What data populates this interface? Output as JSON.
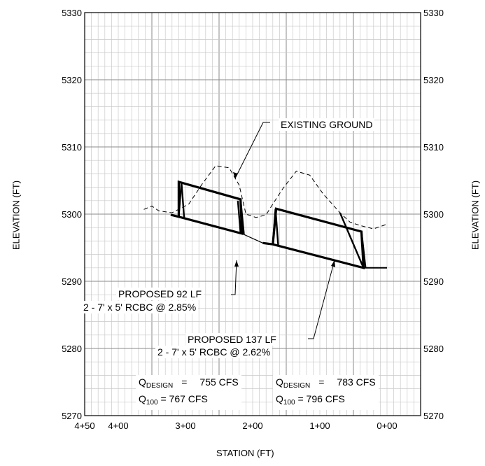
{
  "axes": {
    "left_title": "ELEVATION (FT)",
    "right_title": "ELEVATION (FT)",
    "x_title": "STATION (FT)",
    "y_ticks": [
      "5330",
      "5320",
      "5310",
      "5300",
      "5290",
      "5280",
      "5270"
    ],
    "x_ticks": [
      "4+50",
      "4+00",
      "3+00",
      "2+00",
      "1+00",
      "0+00"
    ]
  },
  "labels": {
    "existing_ground": "EXISTING GROUND",
    "culvert_a_line1": "PROPOSED 92 LF",
    "culvert_a_line2": "2 - 7' x 5' RCBC @ 2.85%",
    "culvert_b_line1": "PROPOSED 137 LF",
    "culvert_b_line2": "2 - 7' x 5' RCBC @ 2.62%"
  },
  "flows": {
    "left": {
      "design_symbol": "Q",
      "design_sub": "DESIGN",
      "eq": "=",
      "design_value": "755 CFS",
      "q100_symbol": "Q",
      "q100_sub": "100",
      "q100_text": "= 767 CFS"
    },
    "right": {
      "design_symbol": "Q",
      "design_sub": "DESIGN",
      "eq": "=",
      "design_value": "783 CFS",
      "q100_symbol": "Q",
      "q100_sub": "100",
      "q100_text": "= 796 CFS"
    }
  },
  "chart_data": {
    "type": "line",
    "xlabel": "STATION (FT)",
    "ylabel": "ELEVATION (FT)",
    "x_reversed": true,
    "xlim": [
      450,
      -50
    ],
    "ylim": [
      5270,
      5330
    ],
    "grid": true,
    "series": [
      {
        "name": "EXISTING GROUND",
        "style": "dashed",
        "points": [
          [
            362,
            5300.7
          ],
          [
            350,
            5301.2
          ],
          [
            340,
            5300.5
          ],
          [
            320,
            5300.2
          ],
          [
            295,
            5301.5
          ],
          [
            275,
            5304.5
          ],
          [
            255,
            5307.2
          ],
          [
            235,
            5306.9
          ],
          [
            220,
            5304.3
          ],
          [
            210,
            5300.0
          ],
          [
            195,
            5299.5
          ],
          [
            180,
            5299.9
          ],
          [
            170,
            5301.5
          ],
          [
            155,
            5303.8
          ],
          [
            135,
            5306.4
          ],
          [
            115,
            5305.8
          ],
          [
            95,
            5303.0
          ],
          [
            70,
            5300.2
          ],
          [
            55,
            5298.8
          ],
          [
            40,
            5298.3
          ],
          [
            20,
            5297.8
          ],
          [
            0,
            5298.5
          ]
        ]
      },
      {
        "name": "PROPOSED 92 LF",
        "style": "solid-thick",
        "points": [
          [
            322,
            5299.9
          ],
          [
            310,
            5299.6
          ],
          [
            216,
            5297.1
          ],
          [
            218,
            5302.2
          ],
          [
            310,
            5304.8
          ],
          [
            310,
            5299.6
          ]
        ]
      },
      {
        "name": "PROPOSED 137 LF",
        "style": "solid-thick",
        "points": [
          [
            185,
            5295.7
          ],
          [
            170,
            5295.5
          ],
          [
            35,
            5292.0
          ],
          [
            38,
            5297.4
          ],
          [
            165,
            5300.8
          ],
          [
            170,
            5295.5
          ]
        ]
      },
      {
        "name": "connecting line",
        "style": "solid-thin",
        "points": [
          [
            216,
            5297.1
          ],
          [
            185,
            5295.7
          ]
        ]
      },
      {
        "name": "outlet",
        "style": "solid",
        "points": [
          [
            35,
            5292.0
          ],
          [
            0,
            5292.0
          ]
        ]
      }
    ]
  }
}
